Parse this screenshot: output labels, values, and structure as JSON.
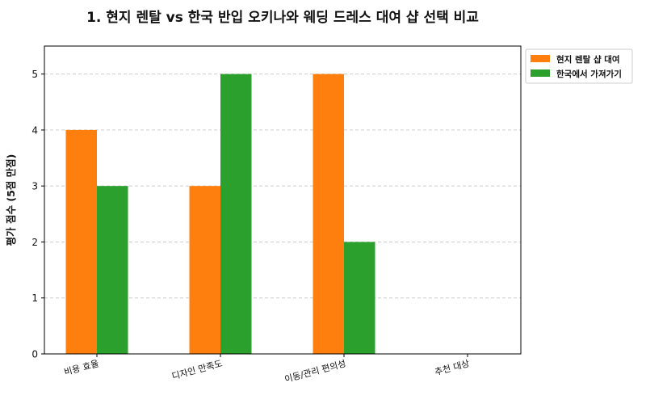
{
  "chart_data": {
    "type": "bar",
    "title": "1. 현지 렌탈 vs 한국 반입 오키나와 웨딩 드레스 대여 샵 선택 비교",
    "xlabel": "",
    "ylabel": "평가 점수 (5점 만점)",
    "categories": [
      "비용 효율",
      "디자인 만족도",
      "이동/관리 편의성",
      "추천 대상"
    ],
    "series": [
      {
        "name": "현지 렌탈 샵 대여",
        "color": "#ff7f0e",
        "values": [
          4,
          3,
          5,
          0
        ]
      },
      {
        "name": "한국에서 가져가기",
        "color": "#2ca02c",
        "values": [
          3,
          5,
          2,
          0
        ]
      }
    ],
    "ylim": [
      0,
      5.5
    ],
    "yticks": [
      "0",
      "1",
      "2",
      "3",
      "4",
      "5"
    ],
    "grid": true,
    "legend_position": "outside-top-right"
  }
}
